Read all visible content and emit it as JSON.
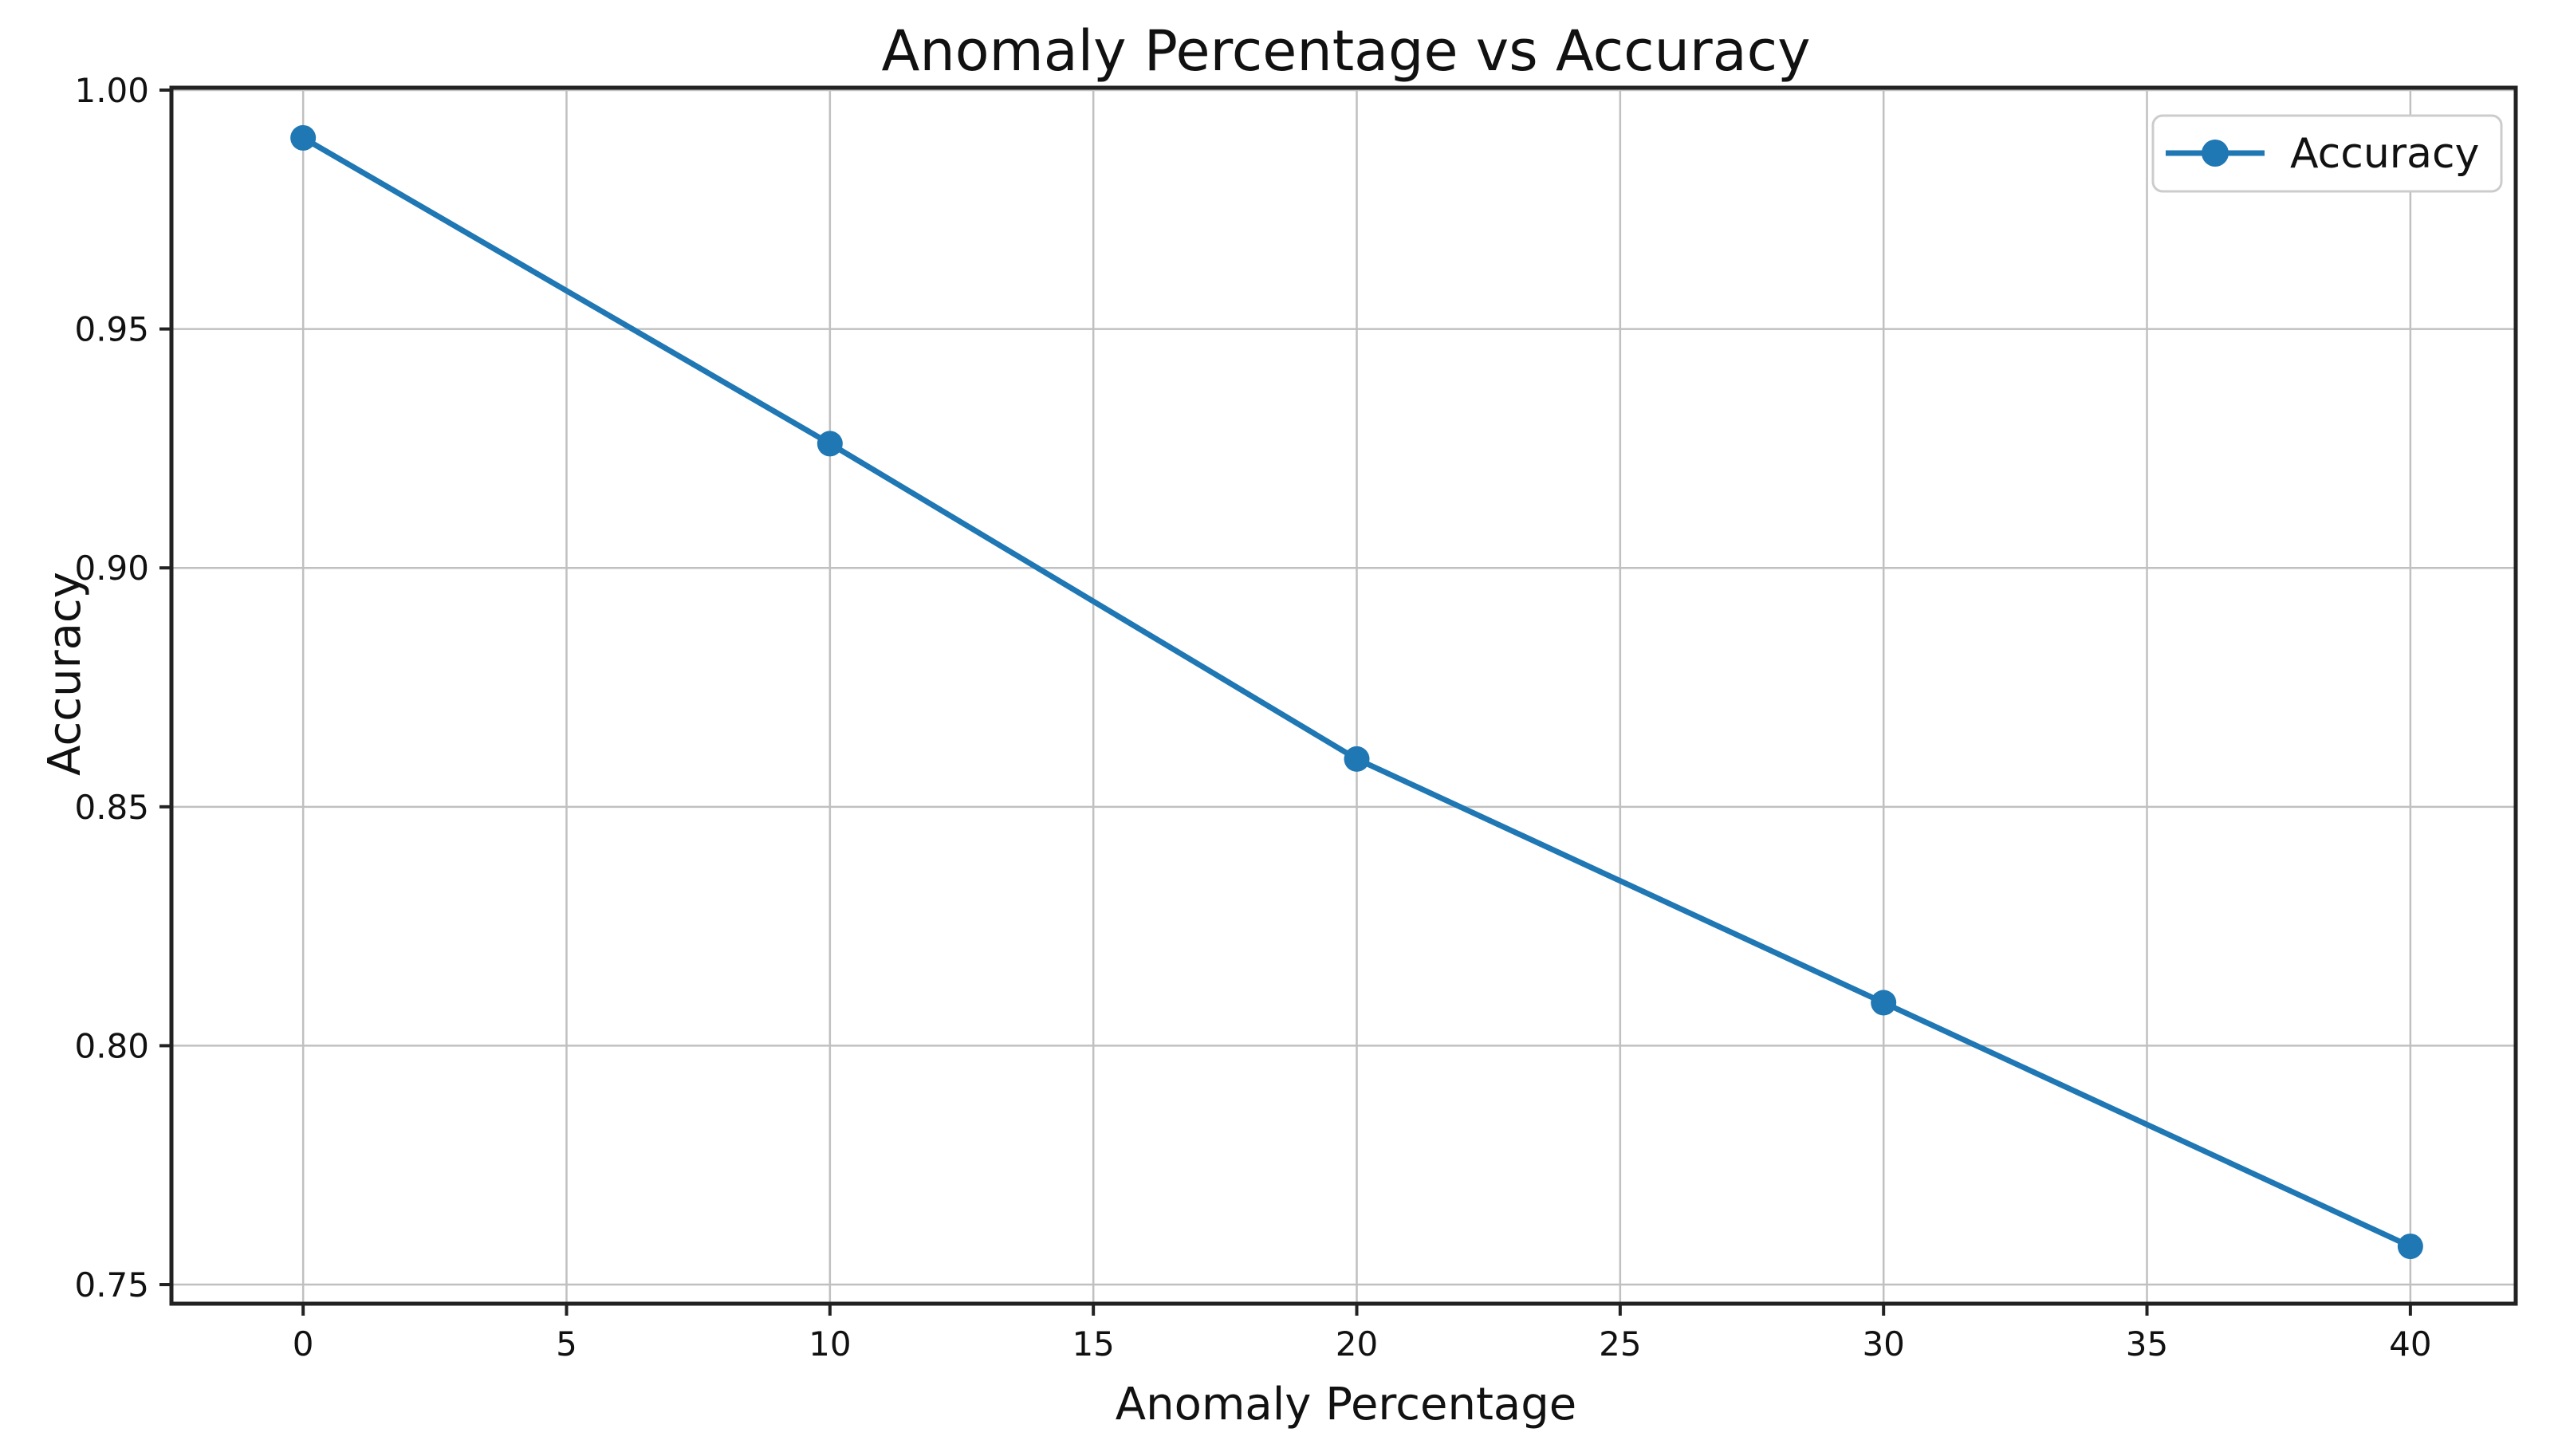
{
  "chart_data": {
    "type": "line",
    "title": "Anomaly Percentage vs Accuracy",
    "xlabel": "Anomaly Percentage",
    "ylabel": "Accuracy",
    "series": [
      {
        "name": "Accuracy",
        "x": [
          0,
          10,
          20,
          30,
          40
        ],
        "y": [
          0.99,
          0.926,
          0.86,
          0.809,
          0.758
        ],
        "color": "#1f77b4",
        "marker": "circle",
        "line_width": 7,
        "marker_radius": 16
      }
    ],
    "xticks": [
      0,
      5,
      10,
      15,
      20,
      25,
      30,
      35,
      40
    ],
    "xtick_labels": [
      "0",
      "5",
      "10",
      "15",
      "20",
      "25",
      "30",
      "35",
      "40"
    ],
    "yticks": [
      0.75,
      0.8,
      0.85,
      0.9,
      0.95,
      1.0
    ],
    "ytick_labels": [
      "0.75",
      "0.80",
      "0.85",
      "0.90",
      "0.95",
      "1.00"
    ],
    "xlim": [
      -2.5,
      42.0
    ],
    "ylim": [
      0.746,
      1.0005
    ],
    "grid": true,
    "grid_color": "#c0c0c0",
    "spine_color": "#222222",
    "background": "#ffffff",
    "legend": {
      "position": "upper right",
      "entries": [
        {
          "label": "Accuracy",
          "color": "#1f77b4",
          "marker": "circle"
        }
      ],
      "border_color": "#cccccc",
      "fill": "#ffffff"
    }
  }
}
